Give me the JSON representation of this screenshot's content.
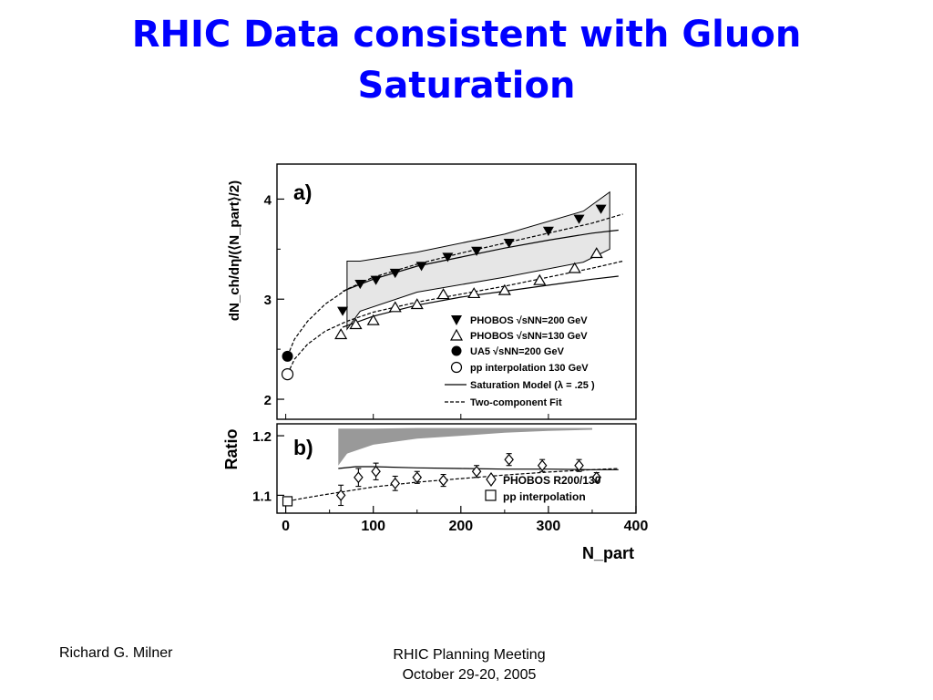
{
  "slide": {
    "title_line1": "RHIC Data consistent with Gluon",
    "title_line2": "Saturation",
    "footer_author": "Richard G. Milner",
    "footer_meeting_line1": "RHIC Planning Meeting",
    "footer_meeting_line2": "October 29-20, 2005"
  },
  "chart_data": [
    {
      "type": "scatter",
      "panel_label": "a)",
      "ylabel": "dN_ch/dη/(⟨N_part⟩/2)",
      "xlim": [
        -10,
        400
      ],
      "ylim": [
        1.8,
        4.35
      ],
      "y_ticks": [
        2,
        3,
        4
      ],
      "legend_position": "bottom-right",
      "series": [
        {
          "name": "PHOBOS √sNN=200 GeV",
          "marker": "filled-triangle-down",
          "x": [
            65,
            85,
            103,
            125,
            155,
            185,
            218,
            255,
            300,
            335,
            360
          ],
          "y": [
            2.88,
            3.15,
            3.19,
            3.26,
            3.33,
            3.42,
            3.48,
            3.56,
            3.68,
            3.8,
            3.9
          ]
        },
        {
          "name": "PHOBOS √sNN=130 GeV",
          "marker": "open-triangle-up",
          "x": [
            63,
            80,
            100,
            125,
            150,
            180,
            215,
            250,
            290,
            330,
            355
          ],
          "y": [
            2.65,
            2.75,
            2.79,
            2.92,
            2.95,
            3.05,
            3.06,
            3.09,
            3.19,
            3.31,
            3.46
          ]
        },
        {
          "name": "UA5 √sNN=200 GeV",
          "marker": "filled-circle",
          "x": [
            2
          ],
          "y": [
            2.43
          ]
        },
        {
          "name": "pp interpolation 130 GeV",
          "marker": "open-circle",
          "x": [
            2
          ],
          "y": [
            2.25
          ]
        },
        {
          "name": "Saturation Model (λ = .25 )",
          "style": "solid-line",
          "curves": [
            {
              "x": [
                65,
                100,
                150,
                200,
                250,
                300,
                350,
                380
              ],
              "y": [
                3.08,
                3.2,
                3.33,
                3.42,
                3.51,
                3.59,
                3.66,
                3.69
              ]
            },
            {
              "x": [
                65,
                100,
                150,
                200,
                250,
                300,
                350,
                380
              ],
              "y": [
                2.72,
                2.83,
                2.94,
                3.02,
                3.08,
                3.14,
                3.2,
                3.23
              ]
            }
          ]
        },
        {
          "name": "Two-component Fit",
          "style": "dashed-line",
          "curves": [
            {
              "x": [
                2,
                10,
                25,
                45,
                70,
                100,
                150,
                200,
                250,
                300,
                350,
                385
              ],
              "y": [
                2.43,
                2.6,
                2.78,
                2.95,
                3.1,
                3.22,
                3.35,
                3.46,
                3.56,
                3.66,
                3.76,
                3.85
              ]
            },
            {
              "x": [
                2,
                10,
                25,
                45,
                70,
                100,
                150,
                200,
                250,
                300,
                350,
                385
              ],
              "y": [
                2.25,
                2.4,
                2.55,
                2.68,
                2.78,
                2.87,
                2.97,
                3.05,
                3.13,
                3.22,
                3.31,
                3.38
              ]
            }
          ]
        }
      ],
      "systematic_band": {
        "upper": {
          "x": [
            70,
            85,
            150,
            250,
            340,
            370
          ],
          "y": [
            3.38,
            3.38,
            3.47,
            3.65,
            3.88,
            4.07
          ]
        },
        "lower": {
          "x": [
            70,
            85,
            150,
            250,
            340,
            370
          ],
          "y": [
            2.7,
            2.88,
            3.07,
            3.22,
            3.37,
            3.5
          ]
        }
      }
    },
    {
      "type": "scatter",
      "panel_label": "b)",
      "ylabel": "Ratio",
      "xlabel": "N_part",
      "xlim": [
        -10,
        400
      ],
      "ylim": [
        1.07,
        1.22
      ],
      "x_ticks": [
        0,
        100,
        200,
        300,
        400
      ],
      "y_ticks": [
        1.1,
        1.2
      ],
      "series": [
        {
          "name": "PHOBOS R200/130",
          "marker": "open-diamond",
          "x": [
            63,
            83,
            103,
            125,
            150,
            180,
            218,
            255,
            293,
            335,
            355
          ],
          "y": [
            1.1,
            1.13,
            1.14,
            1.12,
            1.13,
            1.125,
            1.14,
            1.16,
            1.15,
            1.15,
            1.13
          ],
          "err": [
            0.017,
            0.015,
            0.014,
            0.012,
            0.01,
            0.01,
            0.01,
            0.01,
            0.01,
            0.01,
            0.008
          ]
        },
        {
          "name": "pp interpolation",
          "marker": "open-square",
          "x": [
            2
          ],
          "y": [
            1.09
          ]
        },
        {
          "name": "Saturation Model (λ = .25 )",
          "style": "solid-line",
          "x": [
            60,
            80,
            100,
            150,
            200,
            250,
            300,
            350,
            380
          ],
          "y": [
            1.145,
            1.148,
            1.148,
            1.146,
            1.145,
            1.144,
            1.144,
            1.143,
            1.143
          ]
        },
        {
          "name": "Two-component Fit",
          "style": "dashed-line",
          "x": [
            2,
            20,
            40,
            70,
            100,
            150,
            200,
            250,
            300,
            350,
            380
          ],
          "y": [
            1.09,
            1.095,
            1.1,
            1.107,
            1.114,
            1.122,
            1.128,
            1.134,
            1.139,
            1.143,
            1.145
          ]
        }
      ],
      "shaded_band": {
        "x": [
          60,
          70,
          100,
          150,
          200,
          250,
          300,
          350
        ],
        "top": [
          1.212,
          1.212,
          1.212,
          1.213,
          1.213,
          1.213,
          1.213,
          1.213
        ],
        "bottom": [
          1.15,
          1.17,
          1.185,
          1.195,
          1.2,
          1.205,
          1.208,
          1.21
        ]
      }
    }
  ]
}
